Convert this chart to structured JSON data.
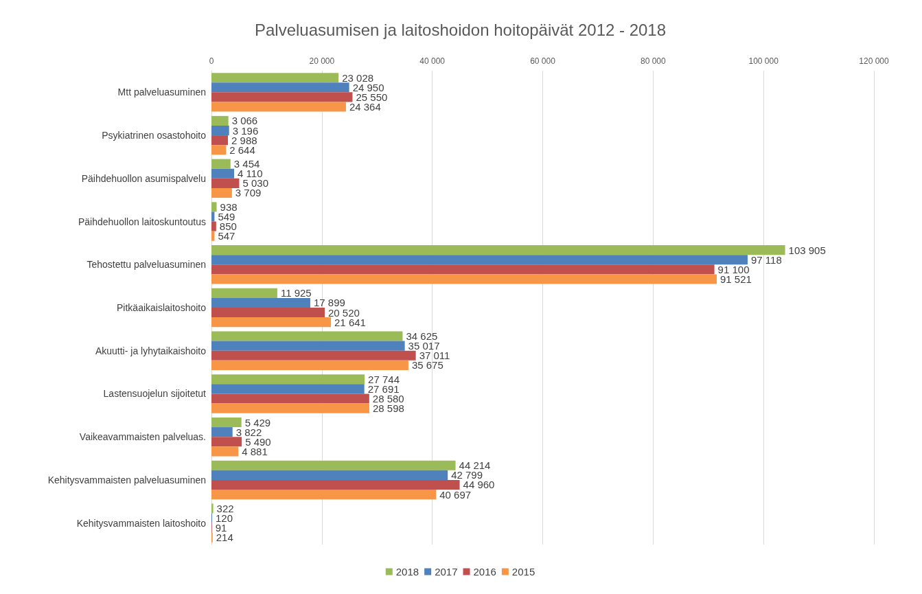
{
  "chart_data": {
    "type": "bar",
    "orientation": "horizontal",
    "title": "Palveluasumisen ja laitoshoidon hoitopäivät 2012 - 2018",
    "categories": [
      "Mtt palveluasuminen",
      "Psykiatrinen osastohoito",
      "Päihdehuollon asumispalvelu",
      "Päihdehuollon laitoskuntoutus",
      "Tehostettu palveluasuminen",
      "Pitkäaikaislaitoshoito",
      "Akuutti- ja lyhytaikaishoito",
      "Lastensuojelun sijoitetut",
      "Vaikeavammaisten palveluas.",
      "Kehitysvammaisten palveluasuminen",
      "Kehitysvammaisten laitoshoito"
    ],
    "series": [
      {
        "name": "2018",
        "color": "#9bbb59",
        "values": [
          23028,
          3066,
          3454,
          938,
          103905,
          11925,
          34625,
          27744,
          5429,
          44214,
          322
        ],
        "value_labels": [
          "23 028",
          "3 066",
          "3 454",
          "938",
          "103 905",
          "11 925",
          "34 625",
          "27 744",
          "5 429",
          "44 214",
          "322"
        ]
      },
      {
        "name": "2017",
        "color": "#4f81bd",
        "values": [
          24950,
          3196,
          4110,
          549,
          97118,
          17899,
          35017,
          27691,
          3822,
          42799,
          120
        ],
        "value_labels": [
          "24 950",
          "3 196",
          "4 110",
          "549",
          "97 118",
          "17 899",
          "35 017",
          "27 691",
          "3 822",
          "42 799",
          "120"
        ]
      },
      {
        "name": "2016",
        "color": "#c0504d",
        "values": [
          25550,
          2988,
          5030,
          850,
          91100,
          20520,
          37011,
          28580,
          5490,
          44960,
          91
        ],
        "value_labels": [
          "25 550",
          "2 988",
          "5 030",
          "850",
          "91 100",
          "20 520",
          "37 011",
          "28 580",
          "5 490",
          "44 960",
          "91"
        ]
      },
      {
        "name": "2015",
        "color": "#f79646",
        "values": [
          24364,
          2644,
          3709,
          547,
          91521,
          21641,
          35675,
          28598,
          4881,
          40697,
          214
        ],
        "value_labels": [
          "24 364",
          "2 644",
          "3 709",
          "547",
          "91 521",
          "21 641",
          "35 675",
          "28 598",
          "4 881",
          "40 697",
          "214"
        ]
      }
    ],
    "xlim": [
      0,
      120000
    ],
    "xticks": [
      0,
      {
        "value": 20000,
        "label": "20 000"
      },
      {
        "value": 40000,
        "label": "40 000"
      },
      {
        "value": 60000,
        "label": "60 000"
      },
      {
        "value": 80000,
        "label": "80 000"
      },
      {
        "value": 100000,
        "label": "100 000"
      },
      {
        "value": 120000,
        "label": "120 000"
      }
    ],
    "grid": "x",
    "legend": "bottom"
  }
}
